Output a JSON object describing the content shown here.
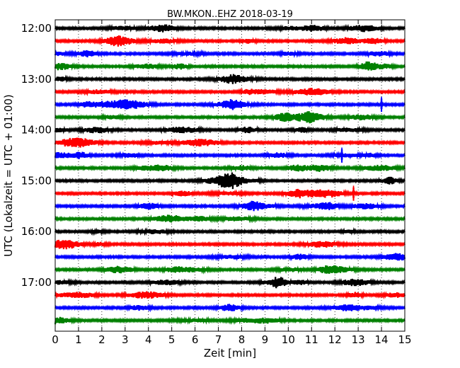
{
  "chart_data": {
    "type": "line",
    "title": "BW.MKON..EHZ 2018-03-19",
    "xlabel": "Zeit  [min]",
    "ylabel": "UTC (Lokalzeit = UTC + 01:00)",
    "xlim": [
      0,
      15
    ],
    "x_ticks": [
      "0",
      "1",
      "2",
      "3",
      "4",
      "5",
      "6",
      "7",
      "8",
      "9",
      "10",
      "11",
      "12",
      "13",
      "14",
      "15"
    ],
    "y_tick_labels": [
      "12:00",
      "13:00",
      "14:00",
      "15:00",
      "16:00",
      "17:00"
    ],
    "row_interval_min": 15,
    "trace_colors": [
      "#000000",
      "#ff0000",
      "#0000ff",
      "#008000"
    ],
    "grid": "vertical dotted at each minute",
    "series": [
      {
        "start": "12:00",
        "color": "#000000"
      },
      {
        "start": "12:15",
        "color": "#ff0000"
      },
      {
        "start": "12:30",
        "color": "#0000ff"
      },
      {
        "start": "12:45",
        "color": "#008000"
      },
      {
        "start": "13:00",
        "color": "#000000"
      },
      {
        "start": "13:15",
        "color": "#ff0000"
      },
      {
        "start": "13:30",
        "color": "#0000ff",
        "events_min": [
          14.0
        ]
      },
      {
        "start": "13:45",
        "color": "#008000"
      },
      {
        "start": "14:00",
        "color": "#000000"
      },
      {
        "start": "14:15",
        "color": "#ff0000"
      },
      {
        "start": "14:30",
        "color": "#0000ff",
        "events_min": [
          12.3
        ]
      },
      {
        "start": "14:45",
        "color": "#008000"
      },
      {
        "start": "15:00",
        "color": "#000000"
      },
      {
        "start": "15:15",
        "color": "#ff0000",
        "events_min": [
          12.8
        ]
      },
      {
        "start": "15:30",
        "color": "#0000ff"
      },
      {
        "start": "15:45",
        "color": "#008000"
      },
      {
        "start": "16:00",
        "color": "#000000"
      },
      {
        "start": "16:15",
        "color": "#ff0000"
      },
      {
        "start": "16:30",
        "color": "#0000ff"
      },
      {
        "start": "16:45",
        "color": "#008000"
      },
      {
        "start": "17:00",
        "color": "#000000"
      },
      {
        "start": "17:15",
        "color": "#ff0000"
      },
      {
        "start": "17:30",
        "color": "#0000ff"
      },
      {
        "start": "17:45",
        "color": "#008000"
      }
    ]
  }
}
